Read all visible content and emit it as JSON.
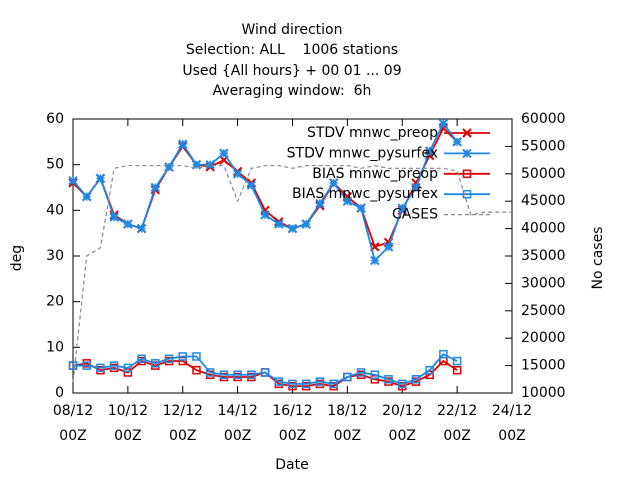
{
  "chart_data": {
    "type": "line",
    "title": [
      "Wind direction",
      "Selection: ALL    1006 stations",
      "Used {All hours} + 00 01 ... 09",
      "Averaging window:  6h"
    ],
    "x_label": "Date",
    "y_label": "deg",
    "y2_label": "No cases",
    "x": [
      "08/12 00Z",
      "08/12 12Z",
      "09/12 00Z",
      "09/12 12Z",
      "10/12 00Z",
      "10/12 12Z",
      "11/12 00Z",
      "11/12 12Z",
      "12/12 00Z",
      "12/12 12Z",
      "13/12 00Z",
      "13/12 12Z",
      "14/12 00Z",
      "14/12 12Z",
      "15/12 00Z",
      "15/12 12Z",
      "16/12 00Z",
      "16/12 12Z",
      "17/12 00Z",
      "17/12 12Z",
      "18/12 00Z",
      "18/12 12Z",
      "19/12 00Z",
      "19/12 12Z",
      "20/12 00Z",
      "20/12 12Z",
      "21/12 00Z",
      "21/12 12Z",
      "22/12 00Z",
      "22/12 12Z",
      "23/12 00Z",
      "23/12 12Z",
      "24/12 00Z"
    ],
    "xlim": [
      "08/12 00Z",
      "24/12 00Z"
    ],
    "xticks": [
      "08/12 00Z",
      "10/12 00Z",
      "12/12 00Z",
      "14/12 00Z",
      "16/12 00Z",
      "18/12 00Z",
      "20/12 00Z",
      "22/12 00Z",
      "24/12 00Z"
    ],
    "ylim": [
      0,
      60
    ],
    "yticks": [
      0,
      10,
      20,
      30,
      40,
      50,
      60
    ],
    "y2lim": [
      10000,
      60000
    ],
    "y2ticks": [
      10000,
      15000,
      20000,
      25000,
      30000,
      35000,
      40000,
      45000,
      50000,
      55000,
      60000
    ],
    "grid": false,
    "legend": "top-right",
    "series": [
      {
        "name": "STDV mnwc_preop",
        "color": "#e00000",
        "marker": "x",
        "values": [
          46,
          43,
          47,
          39,
          37,
          36,
          44.5,
          49.5,
          54,
          50,
          49.5,
          51,
          48.5,
          46,
          40,
          37.5,
          36,
          37,
          41,
          46,
          43,
          40.5,
          32,
          33,
          40,
          46,
          52,
          58,
          55,
          null,
          null,
          null,
          null
        ]
      },
      {
        "name": "STDV mnwc_pysurfex",
        "color": "#1e88e5",
        "marker": "star",
        "values": [
          46.5,
          43,
          47,
          38.5,
          37,
          36,
          45,
          49.5,
          54.5,
          50,
          50,
          52.5,
          48,
          45.5,
          39,
          37,
          36,
          37,
          41.5,
          46,
          42,
          40.5,
          29,
          32,
          40.5,
          45,
          53,
          59,
          55,
          null,
          null,
          null,
          null
        ]
      },
      {
        "name": "BIAS mnwc_preop",
        "color": "#e00000",
        "marker": "square",
        "values": [
          6,
          6.5,
          5,
          5.5,
          4.5,
          7,
          6,
          7,
          7,
          5,
          4,
          3.5,
          3.5,
          3.5,
          4.5,
          2,
          1.5,
          1.5,
          2,
          1.5,
          3.5,
          4,
          3,
          2.5,
          1.5,
          2.5,
          4,
          7,
          5,
          null,
          null,
          null,
          null
        ]
      },
      {
        "name": "BIAS mnwc_pysurfex",
        "color": "#1e88e5",
        "marker": "square",
        "values": [
          6,
          6,
          5.5,
          6,
          5.5,
          7.5,
          6.5,
          7.5,
          8,
          8,
          4.5,
          4,
          4,
          4,
          4.5,
          2.5,
          2,
          2,
          2.5,
          2,
          3.5,
          4.5,
          4,
          3,
          2,
          3,
          5,
          8.5,
          7,
          null,
          null,
          null,
          null
        ]
      },
      {
        "name": "CASES",
        "color": "#888888",
        "marker": "none",
        "dash": true,
        "axis": "y2",
        "values": [
          12000,
          35000,
          36500,
          51000,
          51500,
          51500,
          51500,
          51500,
          51500,
          51000,
          51500,
          51500,
          45000,
          51000,
          51500,
          51500,
          51000,
          51500,
          51500,
          51500,
          51500,
          51000,
          51500,
          51000,
          51000,
          51000,
          51000,
          51000,
          50500,
          42500,
          43000,
          43000,
          43000
        ]
      }
    ]
  }
}
